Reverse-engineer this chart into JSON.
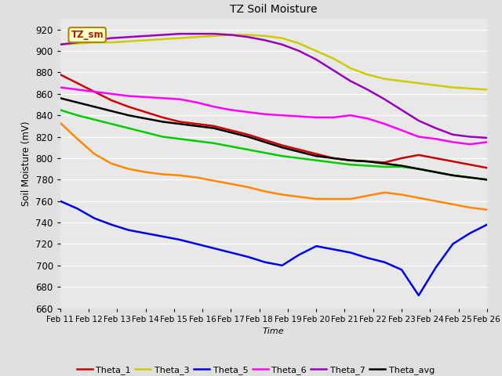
{
  "title": "TZ Soil Moisture",
  "xlabel": "Time",
  "ylabel": "Soil Moisture (mV)",
  "ylim": [
    660,
    930
  ],
  "xlim": [
    0,
    25
  ],
  "xtick_labels": [
    "Feb 11",
    "Feb 12",
    "Feb 13",
    "Feb 14",
    "Feb 15",
    "Feb 16",
    "Feb 17",
    "Feb 18",
    "Feb 19",
    "Feb 20",
    "Feb 21",
    "Feb 22",
    "Feb 23",
    "Feb 24",
    "Feb 25",
    "Feb 26"
  ],
  "background_color": "#e0e0e0",
  "plot_bg_color": "#e8e8e8",
  "annotation_text": "TZ_sm",
  "annotation_color": "#aa2200",
  "annotation_bg": "#ffffcc",
  "colors": {
    "Theta_1": "#cc0000",
    "Theta_2": "#ff8800",
    "Theta_3": "#cccc00",
    "Theta_4": "#00cc00",
    "Theta_5": "#0000ee",
    "Theta_6": "#ff00ff",
    "Theta_7": "#9900bb",
    "Theta_avg": "#000000"
  },
  "series": {
    "Theta_1": [
      878,
      870,
      862,
      854,
      848,
      843,
      838,
      834,
      832,
      830,
      826,
      822,
      817,
      812,
      808,
      804,
      800,
      798,
      797,
      796,
      800,
      803,
      800,
      797,
      794,
      791
    ],
    "Theta_2": [
      833,
      818,
      804,
      795,
      790,
      787,
      785,
      784,
      782,
      779,
      776,
      773,
      769,
      766,
      764,
      762,
      762,
      762,
      765,
      768,
      766,
      763,
      760,
      757,
      754,
      752
    ],
    "Theta_3": [
      906,
      907,
      908,
      908,
      909,
      910,
      911,
      912,
      913,
      914,
      915,
      915,
      914,
      912,
      907,
      900,
      893,
      884,
      878,
      874,
      872,
      870,
      868,
      866,
      865,
      864
    ],
    "Theta_4": [
      845,
      840,
      836,
      832,
      828,
      824,
      820,
      818,
      816,
      814,
      811,
      808,
      805,
      802,
      800,
      798,
      796,
      794,
      793,
      792,
      792,
      790,
      787,
      784,
      782,
      780
    ],
    "Theta_5": [
      760,
      753,
      744,
      738,
      733,
      730,
      727,
      724,
      720,
      716,
      712,
      708,
      703,
      700,
      710,
      718,
      715,
      712,
      707,
      703,
      696,
      672,
      698,
      720,
      730,
      738
    ],
    "Theta_6": [
      866,
      864,
      862,
      860,
      858,
      857,
      856,
      855,
      852,
      848,
      845,
      843,
      841,
      840,
      839,
      838,
      838,
      840,
      837,
      832,
      826,
      820,
      818,
      815,
      813,
      815
    ],
    "Theta_7": [
      906,
      908,
      910,
      912,
      913,
      914,
      915,
      916,
      916,
      916,
      915,
      913,
      910,
      906,
      900,
      892,
      882,
      872,
      864,
      855,
      845,
      835,
      828,
      822,
      820,
      819
    ],
    "Theta_avg": [
      856,
      852,
      848,
      844,
      840,
      837,
      834,
      832,
      830,
      828,
      824,
      820,
      815,
      810,
      806,
      802,
      800,
      798,
      797,
      795,
      793,
      790,
      787,
      784,
      782,
      780
    ]
  },
  "figsize": [
    6.4,
    4.8
  ],
  "dpi": 100
}
